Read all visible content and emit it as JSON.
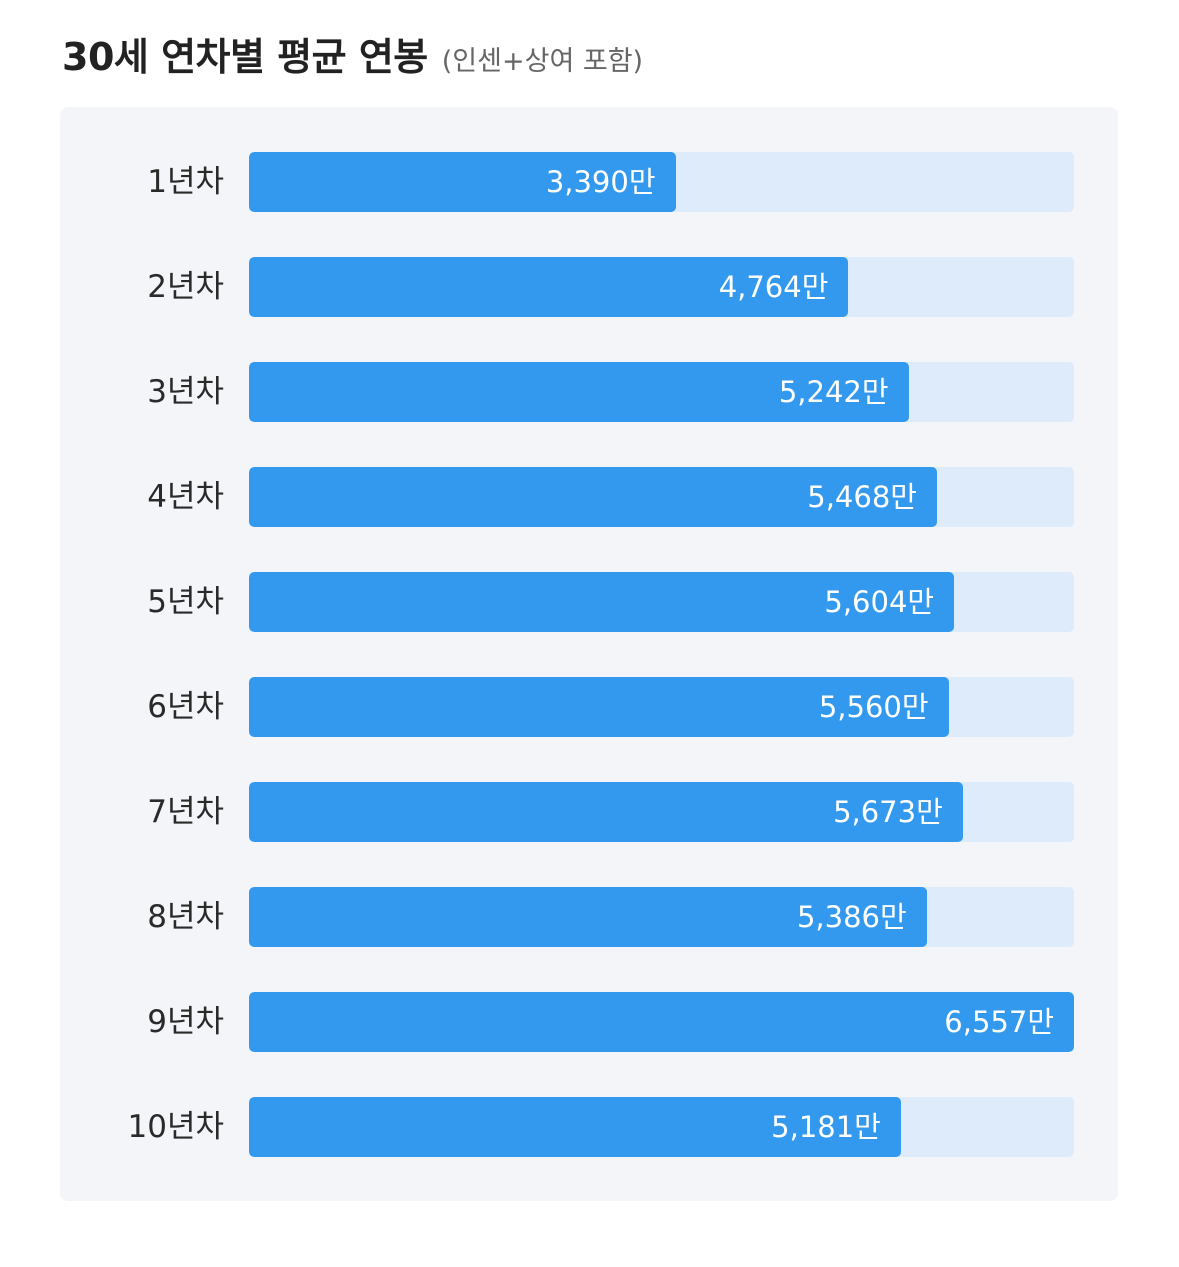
{
  "chart_data": {
    "type": "bar",
    "orientation": "horizontal",
    "title": "30세 연차별 평균 연봉",
    "subtitle": "(인센+상여 포함)",
    "categories": [
      "1년차",
      "2년차",
      "3년차",
      "4년차",
      "5년차",
      "6년차",
      "7년차",
      "8년차",
      "9년차",
      "10년차"
    ],
    "values": [
      3390,
      4764,
      5242,
      5468,
      5604,
      5560,
      5673,
      5386,
      6557,
      5181
    ],
    "value_labels": [
      "3,390만",
      "4,764만",
      "5,242만",
      "5,468만",
      "5,604만",
      "5,560만",
      "5,673만",
      "5,386만",
      "6,557만",
      "5,181만"
    ],
    "xlim": [
      0,
      6557
    ],
    "grid": false,
    "colors": {
      "bar": "#3399ee",
      "track": "#ddebfb",
      "panel": "#f3f5f9"
    }
  }
}
